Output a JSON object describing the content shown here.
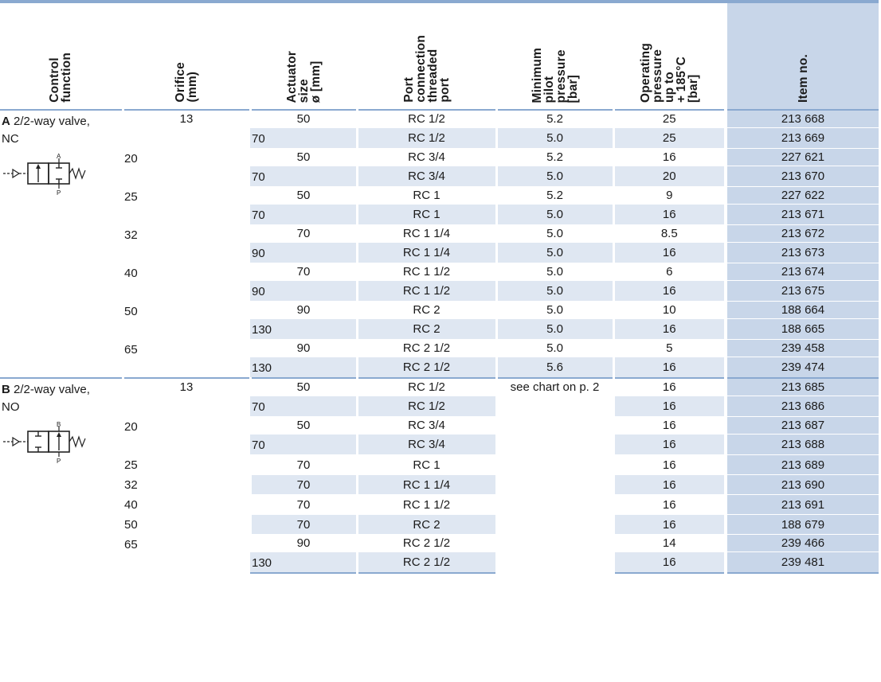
{
  "headers": {
    "control_function": "Control\nfunction",
    "orifice": "Orifice\n(mm)",
    "actuator": "Actuator\nsize\nø [mm]",
    "port": "Port\nconnection\nthreaded\nport",
    "min_pilot": "Minimum\npilot\npressure\n[bar]",
    "operating": "Operating\npressure\nup to\n+ 185°C\n[bar]",
    "item_no": "Item no."
  },
  "group_a": {
    "letter": "A",
    "label": " 2/2-way valve,",
    "label2": "NC",
    "symbol_ports": [
      "A",
      "P"
    ],
    "rows": [
      {
        "orifice": "13",
        "actuator": "50",
        "port": "RC 1/2",
        "min_pilot": "5.2",
        "operating": "25",
        "item": "213 668"
      },
      {
        "orifice": "",
        "actuator": "70",
        "port": "RC 1/2",
        "min_pilot": "5.0",
        "operating": "25",
        "item": "213 669"
      },
      {
        "orifice": "20",
        "actuator": "50",
        "port": "RC 3/4",
        "min_pilot": "5.2",
        "operating": "16",
        "item": "227 621"
      },
      {
        "orifice": "",
        "actuator": "70",
        "port": "RC 3/4",
        "min_pilot": "5.0",
        "operating": "20",
        "item": "213 670"
      },
      {
        "orifice": "25",
        "actuator": "50",
        "port": "RC 1",
        "min_pilot": "5.2",
        "operating": "9",
        "item": "227 622"
      },
      {
        "orifice": "",
        "actuator": "70",
        "port": "RC 1",
        "min_pilot": "5.0",
        "operating": "16",
        "item": "213 671"
      },
      {
        "orifice": "32",
        "actuator": "70",
        "port": "RC 1 1/4",
        "min_pilot": "5.0",
        "operating": "8.5",
        "item": "213 672"
      },
      {
        "orifice": "",
        "actuator": "90",
        "port": "RC 1 1/4",
        "min_pilot": "5.0",
        "operating": "16",
        "item": "213 673"
      },
      {
        "orifice": "40",
        "actuator": "70",
        "port": "RC 1 1/2",
        "min_pilot": "5.0",
        "operating": "6",
        "item": "213 674"
      },
      {
        "orifice": "",
        "actuator": "90",
        "port": "RC 1 1/2",
        "min_pilot": "5.0",
        "operating": "16",
        "item": "213 675"
      },
      {
        "orifice": "50",
        "actuator": "90",
        "port": "RC 2",
        "min_pilot": "5.0",
        "operating": "10",
        "item": "188 664"
      },
      {
        "orifice": "",
        "actuator": "130",
        "port": "RC 2",
        "min_pilot": "5.0",
        "operating": "16",
        "item": "188 665"
      },
      {
        "orifice": "65",
        "actuator": "90",
        "port": "RC 2 1/2",
        "min_pilot": "5.0",
        "operating": "5",
        "item": "239 458"
      },
      {
        "orifice": "",
        "actuator": "130",
        "port": "RC 2 1/2",
        "min_pilot": "5.6",
        "operating": "16",
        "item": "239 474"
      }
    ]
  },
  "group_b": {
    "letter": "B",
    "label": " 2/2-way valve,",
    "label2": "NO",
    "symbol_ports": [
      "B",
      "P"
    ],
    "min_pilot_note": "see chart on p. 2",
    "rows": [
      {
        "orifice": "13",
        "actuator": "50",
        "port": "RC 1/2",
        "operating": "16",
        "item": "213 685"
      },
      {
        "orifice": "",
        "actuator": "70",
        "port": "RC 1/2",
        "operating": "16",
        "item": "213 686"
      },
      {
        "orifice": "20",
        "actuator": "50",
        "port": "RC 3/4",
        "operating": "16",
        "item": "213 687"
      },
      {
        "orifice": "",
        "actuator": "70",
        "port": "RC 3/4",
        "operating": "16",
        "item": "213 688"
      },
      {
        "orifice": "25",
        "actuator": "70",
        "port": "RC 1",
        "operating": "16",
        "item": "213 689"
      },
      {
        "orifice": "32",
        "actuator": "70",
        "port": "RC 1 1/4",
        "operating": "16",
        "item": "213 690"
      },
      {
        "orifice": "40",
        "actuator": "70",
        "port": "RC 1 1/2",
        "operating": "16",
        "item": "213 691"
      },
      {
        "orifice": "50",
        "actuator": "70",
        "port": "RC 2",
        "operating": "16",
        "item": "188 679"
      },
      {
        "orifice": "65",
        "actuator": "90",
        "port": "RC 2 1/2",
        "operating": "14",
        "item": "239 466"
      },
      {
        "orifice": "",
        "actuator": "130",
        "port": "RC 2 1/2",
        "operating": "16",
        "item": "239 481"
      }
    ]
  },
  "colors": {
    "rule": "#8aa9d0",
    "item_column": "#c8d6e9",
    "row_shade": "#dfe7f2"
  }
}
